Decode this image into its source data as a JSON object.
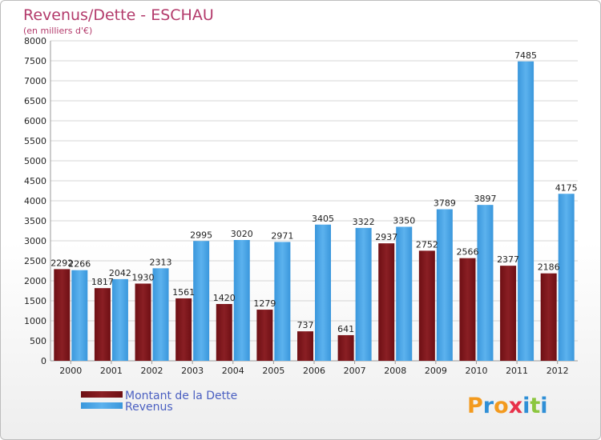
{
  "chart_data": {
    "type": "bar",
    "title": "Revenus/Dette - ESCHAU",
    "subtitle": "(en milliers d'€)",
    "categories": [
      "2000",
      "2001",
      "2002",
      "2003",
      "2004",
      "2005",
      "2006",
      "2007",
      "2008",
      "2009",
      "2010",
      "2011",
      "2012"
    ],
    "series": [
      {
        "name": "Montant de la Dette",
        "color": "#6e0f14",
        "values": [
          2292,
          1817,
          1930,
          1561,
          1420,
          1279,
          737,
          641,
          2937,
          2752,
          2566,
          2377,
          2186
        ]
      },
      {
        "name": "Revenus",
        "color": "#3a97dc",
        "values": [
          2266,
          2042,
          2313,
          2995,
          3020,
          2971,
          3405,
          3322,
          3350,
          3789,
          3897,
          7485,
          4175
        ]
      }
    ],
    "ylim": [
      0,
      8000
    ],
    "yticks": [
      0,
      500,
      1000,
      1500,
      2000,
      2500,
      3000,
      3500,
      4000,
      4500,
      5000,
      5500,
      6000,
      6500,
      7000,
      7500,
      8000
    ],
    "xlabel": "",
    "ylabel": "",
    "grid": "horizontal",
    "legend_position": "bottom-left"
  },
  "logo": {
    "letters": [
      "P",
      "r",
      "o",
      "x",
      "i",
      "t",
      "i"
    ],
    "colors": [
      "#f39a1e",
      "#2f8fd6",
      "#f39a1e",
      "#e8314a",
      "#2f8fd6",
      "#8cc63f",
      "#2f8fd6"
    ]
  }
}
